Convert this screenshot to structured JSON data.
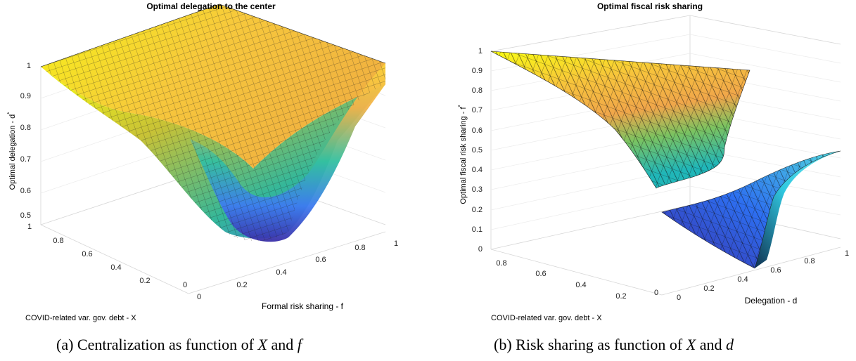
{
  "chart_data": [
    {
      "type": "surface",
      "title": "Optimal delegation to the center",
      "zlabel_text": "Optimal delegation - d",
      "zlabel_sup": "*",
      "xlabel": "COVID-related var. gov. debt - X",
      "ylabel": "Formal risk sharing - f",
      "xlim": [
        0,
        1
      ],
      "ylim": [
        0,
        1
      ],
      "zlim": [
        0.5,
        1
      ],
      "x_ticks": [
        "0",
        "0.2",
        "0.4",
        "0.6",
        "0.8",
        "1"
      ],
      "y_ticks": [
        "0",
        "0.2",
        "0.4",
        "0.6",
        "0.8",
        "1"
      ],
      "z_ticks": [
        "0.5",
        "0.6",
        "0.7",
        "0.8",
        "0.9",
        "1"
      ],
      "grid": true,
      "colormap": "parula",
      "caption_text": "(a) Centralization as function of ",
      "caption_var1": "X",
      "caption_and": " and ",
      "caption_var2": "f"
    },
    {
      "type": "surface",
      "title": "Optimal fiscal risk sharing",
      "zlabel_text": "Optimal fiscal risk sharing - f",
      "zlabel_sup": "*",
      "xlabel": "COVID-related var. gov. debt - X",
      "ylabel": "Delegation - d",
      "xlim": [
        0,
        1
      ],
      "ylim": [
        0,
        1
      ],
      "zlim": [
        0,
        1
      ],
      "x_ticks": [
        "0",
        "0.2",
        "0.4",
        "0.6",
        "0.8"
      ],
      "y_ticks": [
        "0",
        "0.2",
        "0.4",
        "0.6",
        "0.8",
        "1"
      ],
      "z_ticks": [
        "0",
        "0.1",
        "0.2",
        "0.3",
        "0.4",
        "0.5",
        "0.6",
        "0.7",
        "0.8",
        "0.9",
        "1"
      ],
      "grid": true,
      "colormap": "parula",
      "caption_text": "(b) Risk sharing as function of ",
      "caption_var1": "X",
      "caption_and": " and ",
      "caption_var2": "d"
    }
  ]
}
